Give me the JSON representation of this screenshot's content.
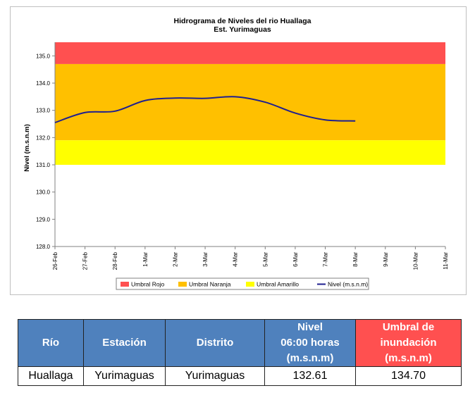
{
  "chart_data": {
    "type": "line",
    "title": "Hidrograma de Niveles del rio Huallaga",
    "subtitle": "Est. Yurimaguas",
    "ylabel": "Nivel (m.s.n.m)",
    "xlabel": "",
    "ylim": [
      128.0,
      135.5
    ],
    "yticks": [
      "128.0",
      "129.0",
      "130.0",
      "131.0",
      "132.0",
      "133.0",
      "134.0",
      "135.0"
    ],
    "categories": [
      "26-Feb",
      "27-Feb",
      "28-Feb",
      "1-Mar",
      "2-Mar",
      "3-Mar",
      "4-Mar",
      "5-Mar",
      "6-Mar",
      "7-Mar",
      "8-Mar",
      "9-Mar",
      "10-Mar",
      "11-Mar"
    ],
    "bands": [
      {
        "name": "Umbral Rojo",
        "from": 134.7,
        "to": 135.5,
        "color": "#ff5050"
      },
      {
        "name": "Umbral Naranja",
        "from": 131.9,
        "to": 134.7,
        "color": "#ffc000"
      },
      {
        "name": "Umbral Amarillo",
        "from": 131.0,
        "to": 131.9,
        "color": "#ffff00"
      }
    ],
    "series": [
      {
        "name": "Nivel (m.s.n.m)",
        "color": "#1f1f8f",
        "values": [
          132.55,
          132.92,
          132.97,
          133.36,
          133.45,
          133.44,
          133.5,
          133.3,
          132.9,
          132.65,
          132.61,
          null,
          null,
          null
        ]
      }
    ],
    "legend": "bottom",
    "legend_entries": [
      "Umbral Rojo",
      "Umbral Naranja",
      "Umbral Amarillo",
      "Nivel (m.s.n.m)"
    ]
  },
  "table": {
    "headers": {
      "rio": "Río",
      "estacion": "Estación",
      "distrito": "Distrito",
      "nivel_l1": "Nivel",
      "nivel_l2": "06:00 horas",
      "nivel_l3": "(m.s.n.m)",
      "umbral_l1": "Umbral de",
      "umbral_l2": "inundación",
      "umbral_l3": "(m.s.n.m)"
    },
    "row": {
      "rio": "Huallaga",
      "estacion": "Yurimaguas",
      "distrito": "Yurimaguas",
      "nivel": "132.61",
      "umbral": "134.70"
    },
    "colors": {
      "header_blue": "#4f81bd",
      "header_red": "#ff5050"
    }
  }
}
